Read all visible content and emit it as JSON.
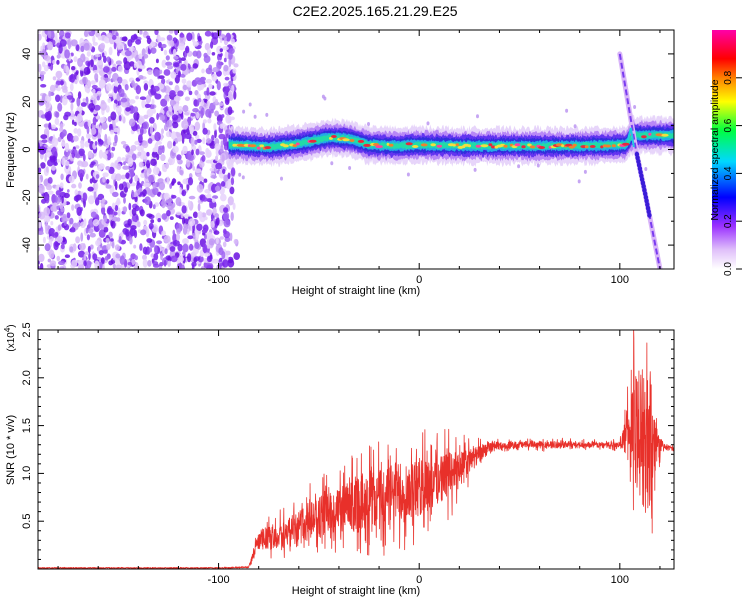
{
  "title": "C2E2.2025.165.21.29.E25",
  "colors": {
    "spectrogram_purple": "#7b2ff0",
    "ridge_low": "#2a2fd8",
    "ridge_mid": "#22d8c8",
    "ridge_high": "#e8283c",
    "snr_line": "#e8302a",
    "colormap": [
      "#ffffff",
      "#d8b0f8",
      "#a040ff",
      "#0000ff",
      "#00d8ff",
      "#00ff40",
      "#ffff00",
      "#ff8000",
      "#ff0000",
      "#ff00a0"
    ]
  },
  "chart_data": [
    {
      "type": "heatmap",
      "title": "C2E2.2025.165.21.29.E25",
      "xlabel": "Height of straight line (km)",
      "ylabel": "Frequency (Hz)",
      "xlim": [
        -190,
        127
      ],
      "ylim": [
        -50,
        50
      ],
      "xticks": [
        -100,
        0,
        100
      ],
      "xtick_labels": [
        "-100",
        "0",
        "100"
      ],
      "yticks": [
        -40,
        -20,
        0,
        20,
        40
      ],
      "ytick_labels": [
        "-40",
        "-20",
        "0",
        "20",
        "40"
      ],
      "colorbar": {
        "label": "Normalized spectral amplitude",
        "range": [
          0.0,
          1.0
        ],
        "ticks": [
          0.0,
          0.2,
          0.4,
          0.6,
          0.8
        ],
        "tick_labels": [
          "0.0",
          "0.2",
          "0.4",
          "0.6",
          "0.8"
        ]
      },
      "features": {
        "noise_x_range": [
          -190,
          -92
        ],
        "ridge_x_range": [
          -95,
          127
        ],
        "ridge_frequency": 1.5,
        "ridge_points": [
          [
            -93,
            2
          ],
          [
            -85,
            1.5
          ],
          [
            -75,
            1
          ],
          [
            -60,
            2.5
          ],
          [
            -45,
            5
          ],
          [
            -35,
            4.5
          ],
          [
            -25,
            2
          ],
          [
            -10,
            1.5
          ],
          [
            0,
            2
          ],
          [
            20,
            1.5
          ],
          [
            50,
            1.5
          ],
          [
            80,
            1.5
          ],
          [
            103,
            2
          ],
          [
            106,
            6
          ]
        ],
        "streak_points": [
          [
            100,
            40
          ],
          [
            108,
            0
          ],
          [
            113,
            -20
          ],
          [
            120,
            -50
          ]
        ]
      }
    },
    {
      "type": "line",
      "xlabel": "Height of straight line (km)",
      "ylabel": "SNR (10 * v/v)",
      "y_multiplier": "(x10",
      "y_multiplier_exp": "4",
      "xlim": [
        -190,
        127
      ],
      "ylim": [
        0,
        2.5
      ],
      "xticks": [
        -100,
        0,
        100
      ],
      "xtick_labels": [
        "-100",
        "0",
        "100"
      ],
      "yticks": [
        0.5,
        1.0,
        1.5,
        2.0,
        2.5
      ],
      "ytick_labels": [
        "0.5",
        "1.0",
        "1.5",
        "2.0",
        "2.5"
      ],
      "series": [
        {
          "points": [
            [
              -190,
              0.01
            ],
            [
              -100,
              0.01
            ],
            [
              -85,
              0.02
            ],
            [
              -80,
              0.3
            ],
            [
              -70,
              0.35
            ],
            [
              -60,
              0.45
            ],
            [
              -50,
              0.55
            ],
            [
              -40,
              0.6
            ],
            [
              -30,
              0.7
            ],
            [
              -20,
              0.75
            ],
            [
              -10,
              0.8
            ],
            [
              0,
              0.85
            ],
            [
              10,
              0.95
            ],
            [
              20,
              1.05
            ],
            [
              30,
              1.2
            ],
            [
              35,
              1.28
            ],
            [
              50,
              1.3
            ],
            [
              80,
              1.3
            ],
            [
              100,
              1.3
            ],
            [
              103,
              1.4
            ],
            [
              108,
              1.5
            ],
            [
              113,
              1.3
            ],
            [
              117,
              1.32
            ],
            [
              120,
              1.28
            ],
            [
              127,
              1.26
            ]
          ],
          "noise_amplitude": [
            [
              -85,
              0.0
            ],
            [
              -80,
              0.15
            ],
            [
              -60,
              0.25
            ],
            [
              -40,
              0.35
            ],
            [
              -20,
              0.45
            ],
            [
              0,
              0.45
            ],
            [
              15,
              0.35
            ],
            [
              30,
              0.12
            ],
            [
              40,
              0.05
            ],
            [
              100,
              0.04
            ],
            [
              103,
              0.3
            ],
            [
              105,
              0.6
            ],
            [
              108,
              0.9
            ],
            [
              112,
              1.1
            ],
            [
              116,
              0.9
            ],
            [
              118,
              0.3
            ],
            [
              122,
              0.05
            ],
            [
              127,
              0.03
            ]
          ]
        }
      ]
    }
  ]
}
